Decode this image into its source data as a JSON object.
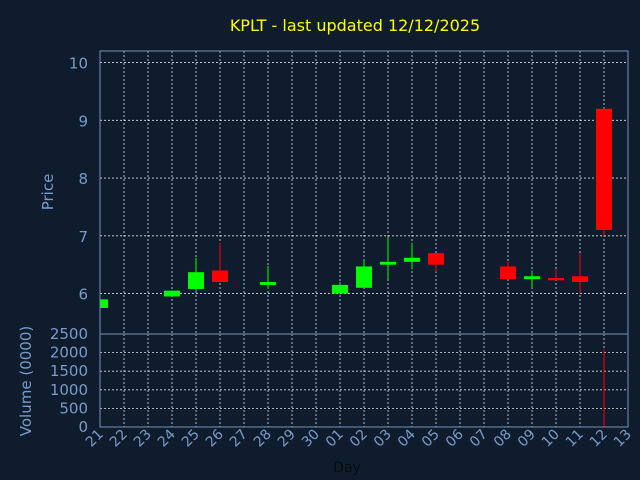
{
  "chart_data": {
    "type": "candlestick",
    "title": "KPLT - last updated 12/12/2025",
    "xlabel": "Day",
    "ylabel": "Price",
    "volume_label": "Volume (0000)",
    "x_ticks": [
      "21",
      "22",
      "23",
      "24",
      "25",
      "26",
      "27",
      "28",
      "29",
      "30",
      "01",
      "02",
      "03",
      "04",
      "05",
      "06",
      "07",
      "08",
      "09",
      "10",
      "11",
      "12",
      "13"
    ],
    "price_ylim": [
      5.3,
      10.2
    ],
    "price_yticks": [
      6,
      7,
      8,
      9,
      10
    ],
    "volume_ylim": [
      0,
      2500
    ],
    "volume_yticks": [
      0,
      500,
      1000,
      1500,
      2000,
      2500
    ],
    "grid": true,
    "colors": {
      "background": "#0f1c2e",
      "axis": "#7a8fb5",
      "title": "#ffff00",
      "label": "#7a9cc8",
      "up": "#00ff00",
      "down": "#ff0000"
    },
    "candles": [
      {
        "x": "21",
        "open": 5.75,
        "close": 5.9,
        "high": 5.9,
        "low": 5.75
      },
      {
        "x": "24",
        "open": 5.95,
        "close": 6.05,
        "high": 6.05,
        "low": 5.95
      },
      {
        "x": "25",
        "open": 6.08,
        "close": 6.37,
        "high": 6.62,
        "low": 6.05
      },
      {
        "x": "26",
        "open": 6.4,
        "close": 6.2,
        "high": 6.88,
        "low": 6.2
      },
      {
        "x": "28",
        "open": 6.15,
        "close": 6.2,
        "high": 6.48,
        "low": 6.08
      },
      {
        "x": "01",
        "open": 6.0,
        "close": 6.15,
        "high": 6.2,
        "low": 6.0
      },
      {
        "x": "02",
        "open": 6.1,
        "close": 6.47,
        "high": 6.58,
        "low": 6.1
      },
      {
        "x": "03",
        "open": 6.5,
        "close": 6.55,
        "high": 6.98,
        "low": 6.25
      },
      {
        "x": "04",
        "open": 6.55,
        "close": 6.62,
        "high": 6.88,
        "low": 6.42
      },
      {
        "x": "05",
        "open": 6.7,
        "close": 6.5,
        "high": 6.7,
        "low": 6.38
      },
      {
        "x": "08",
        "open": 6.47,
        "close": 6.25,
        "high": 6.55,
        "low": 6.25
      },
      {
        "x": "09",
        "open": 6.25,
        "close": 6.3,
        "high": 6.4,
        "low": 6.1
      },
      {
        "x": "10",
        "open": 6.27,
        "close": 6.23,
        "high": 6.42,
        "low": 6.23
      },
      {
        "x": "11",
        "open": 6.3,
        "close": 6.2,
        "high": 6.7,
        "low": 6.0
      },
      {
        "x": "12",
        "open": 9.2,
        "close": 7.1,
        "high": 9.2,
        "low": 7.0
      }
    ],
    "volume": [
      {
        "x": "12",
        "value": 2080
      }
    ]
  }
}
